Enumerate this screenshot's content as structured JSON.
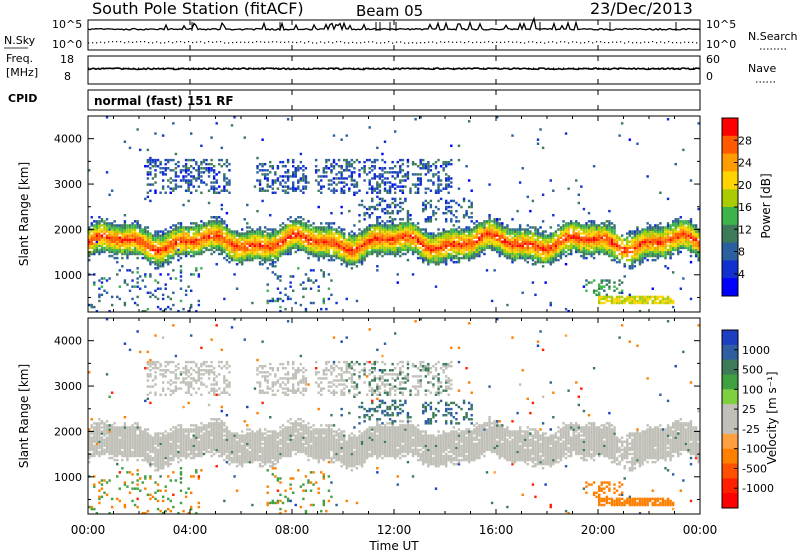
{
  "header": {
    "title": "South Pole Station (fitACF)",
    "beam": "Beam 05",
    "date": "23/Dec/2013"
  },
  "top_panels": {
    "nsky_label": "N.Sky",
    "nsearch_label": "N.Search",
    "freq_label_1": "Freq.",
    "freq_label_2": "[MHz]",
    "nave_label": "Nave",
    "cpid_label": "CPID",
    "noise_ticks_left": [
      "10^5",
      "10^0"
    ],
    "noise_ticks_right": [
      "10^5",
      "10^0"
    ],
    "freq_ticks": [
      "18",
      "8"
    ],
    "nave_ticks": [
      "60",
      "0"
    ],
    "cpid_text": "normal (fast) 151 RF"
  },
  "axes": {
    "ylabel": "Slant Range [km]",
    "yticks": [
      "4000",
      "3000",
      "2000",
      "1000"
    ],
    "xlabel": "Time UT",
    "xticks": [
      "00:00",
      "04:00",
      "08:00",
      "12:00",
      "16:00",
      "20:00",
      "00:00"
    ]
  },
  "power_scale": {
    "label": "Power [dB]",
    "ticks": [
      "28",
      "24",
      "20",
      "16",
      "12",
      "8",
      "4"
    ],
    "colors": [
      "#ff0000",
      "#ff5a00",
      "#ff9c00",
      "#ffd400",
      "#aacc00",
      "#3cb44b",
      "#3c7a5a",
      "#2a5fa0",
      "#1030d0",
      "#0000ff"
    ]
  },
  "velocity_scale": {
    "label": "Velocity [m s⁻¹]",
    "ticks": [
      "1000",
      "500",
      "100",
      "25",
      "-25",
      "-100",
      "-500",
      "-1000"
    ],
    "colors": [
      "#1d3fbf",
      "#2f5fa0",
      "#3c7a5a",
      "#3fa040",
      "#7fd040",
      "#c0c0b8",
      "#c0c0b8",
      "#ffa040",
      "#ff8000",
      "#ff5000",
      "#ff2000",
      "#ff0000"
    ]
  },
  "chart_data": [
    {
      "type": "heatmap",
      "title": "South Pole Station (fitACF) Beam 05 23/Dec/2013",
      "quantity": "Power",
      "units": "dB",
      "xlabel": "Time UT",
      "ylabel": "Slant Range [km]",
      "x_range": [
        "00:00",
        "24:00"
      ],
      "y_range": [
        180,
        4500
      ],
      "color_range": [
        0,
        30
      ],
      "features": [
        {
          "description": "main echo band",
          "time": "00:00-24:00",
          "range_km": [
            1400,
            2100
          ],
          "power_db": [
            16,
            30
          ]
        },
        {
          "description": "upper scatter patches",
          "time": "02:30-14:00",
          "range_km": [
            2800,
            3500
          ],
          "power_db": [
            4,
            12
          ]
        },
        {
          "description": "near-range echoes",
          "time": "20:00-23:00",
          "range_km": [
            400,
            500
          ],
          "power_db": [
            16,
            22
          ]
        }
      ]
    },
    {
      "type": "heatmap",
      "quantity": "Velocity",
      "units": "m s-1",
      "xlabel": "Time UT",
      "ylabel": "Slant Range [km]",
      "x_range": [
        "00:00",
        "24:00"
      ],
      "y_range": [
        180,
        4500
      ],
      "color_range": [
        -1000,
        1000
      ],
      "features": [
        {
          "description": "ground scatter band (low velocity)",
          "time": "00:00-24:00",
          "range_km": [
            1400,
            2100
          ],
          "velocity": [
            -25,
            25
          ]
        },
        {
          "description": "negative velocity echoes",
          "time": "19:30-23:00",
          "range_km": [
            350,
            700
          ],
          "velocity": [
            -500,
            -100
          ]
        },
        {
          "description": "positive velocity patches",
          "time": "10:00-14:00",
          "range_km": [
            2300,
            3000
          ],
          "velocity": [
            100,
            500
          ]
        }
      ]
    }
  ]
}
